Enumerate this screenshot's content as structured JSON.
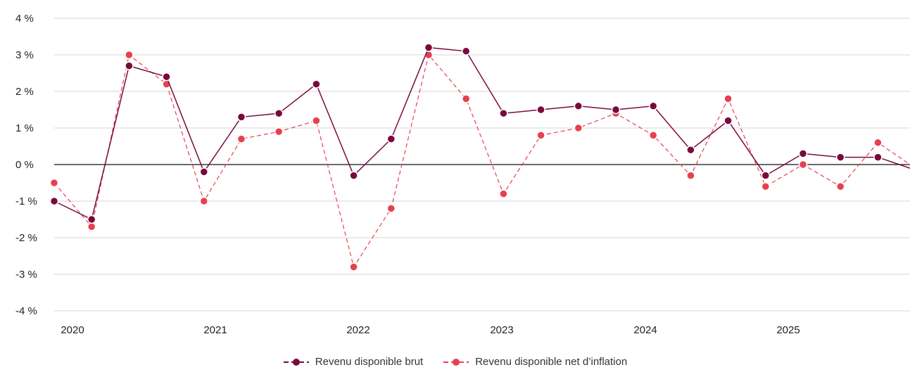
{
  "chart_data": {
    "type": "line",
    "title": "",
    "xlabel": "",
    "ylabel": "",
    "ylim": [
      -4,
      4
    ],
    "y_ticks": [
      4,
      3,
      2,
      1,
      0,
      -1,
      -2,
      -3,
      -4
    ],
    "y_tick_labels": [
      "4 %",
      "3 %",
      "2 %",
      "1 %",
      "0 %",
      "-1 %",
      "-2 %",
      "-3 %",
      "-4 %"
    ],
    "x_ticks": [
      "2020",
      "2021",
      "2022",
      "2023",
      "2024",
      "2025"
    ],
    "grid": "horizontal",
    "legend_position": "bottom",
    "series": [
      {
        "name": "Revenu disponible brut",
        "color": "#7a0a3e",
        "style": "solid",
        "values": [
          -1.0,
          -1.5,
          2.7,
          2.4,
          -0.2,
          1.3,
          1.4,
          2.2,
          -0.3,
          0.7,
          3.2,
          3.1,
          1.4,
          1.5,
          1.6,
          1.5,
          1.6,
          0.4,
          1.2,
          -0.3,
          0.3,
          0.2,
          0.2,
          -0.15
        ]
      },
      {
        "name": "Revenu disponible net d’inflation",
        "color": "#e8404e",
        "style": "dashed",
        "values": [
          -0.5,
          -1.7,
          3.0,
          2.2,
          -1.0,
          0.7,
          0.9,
          1.2,
          -2.8,
          -1.2,
          3.0,
          1.8,
          -0.8,
          0.8,
          1.0,
          1.4,
          0.8,
          -0.3,
          1.8,
          -0.6,
          0.0,
          -0.6,
          0.6,
          -0.1
        ]
      }
    ]
  }
}
